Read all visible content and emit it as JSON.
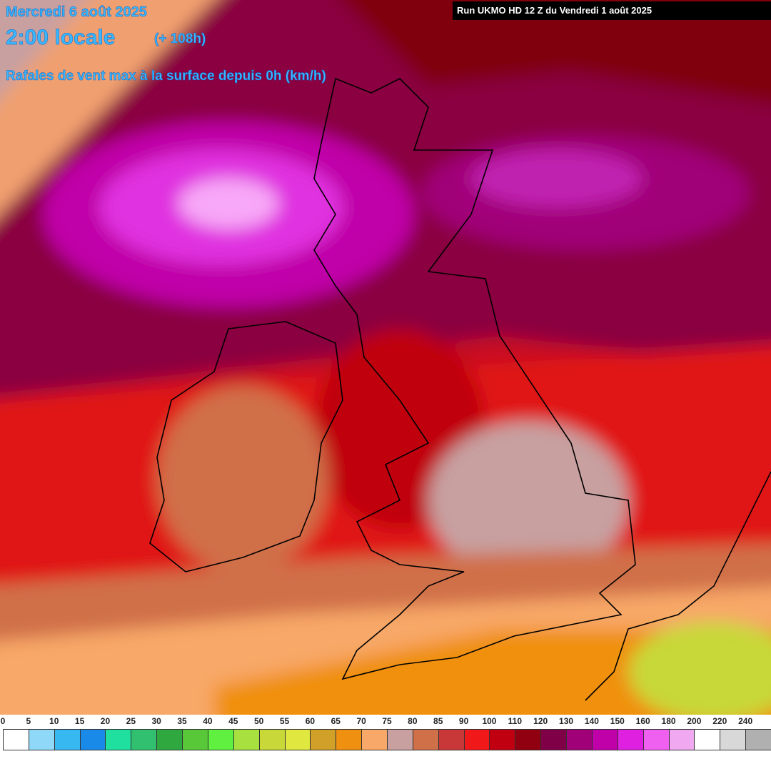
{
  "header": {
    "date": "Mercredi 6 août 2025",
    "time": "2:00 locale",
    "lead": "(+ 108h)",
    "field": "Rafales de vent max à la surface depuis 0h (km/h)",
    "run": "Run UKMO HD 12 Z du Vendredi 1 août 2025"
  },
  "legend": {
    "items": [
      {
        "label": "0",
        "color": "#ffffff"
      },
      {
        "label": "5",
        "color": "#90d8f8"
      },
      {
        "label": "10",
        "color": "#38b8f0"
      },
      {
        "label": "15",
        "color": "#1a8ae8"
      },
      {
        "label": "20",
        "color": "#20e0a0"
      },
      {
        "label": "25",
        "color": "#30c070"
      },
      {
        "label": "30",
        "color": "#30a840"
      },
      {
        "label": "35",
        "color": "#58c838"
      },
      {
        "label": "40",
        "color": "#60f040"
      },
      {
        "label": "45",
        "color": "#a8e040"
      },
      {
        "label": "50",
        "color": "#c8d838"
      },
      {
        "label": "55",
        "color": "#e0e840"
      },
      {
        "label": "60",
        "color": "#d0a028"
      },
      {
        "label": "65",
        "color": "#f09010"
      },
      {
        "label": "70",
        "color": "#f8a868"
      },
      {
        "label": "75",
        "color": "#c8a0a0"
      },
      {
        "label": "80",
        "color": "#d07048"
      },
      {
        "label": "85",
        "color": "#c83838"
      },
      {
        "label": "90",
        "color": "#f01818"
      },
      {
        "label": "100",
        "color": "#c00010"
      },
      {
        "label": "110",
        "color": "#900010"
      },
      {
        "label": "120",
        "color": "#800048"
      },
      {
        "label": "130",
        "color": "#a00078"
      },
      {
        "label": "140",
        "color": "#c000a8"
      },
      {
        "label": "150",
        "color": "#e020e0"
      },
      {
        "label": "160",
        "color": "#f060f0"
      },
      {
        "label": "180",
        "color": "#f0a8f0"
      },
      {
        "label": "200",
        "color": "#ffffff"
      },
      {
        "label": "220",
        "color": "#d8d8d8"
      },
      {
        "label": "240",
        "color": "#b0b0b0"
      }
    ]
  }
}
